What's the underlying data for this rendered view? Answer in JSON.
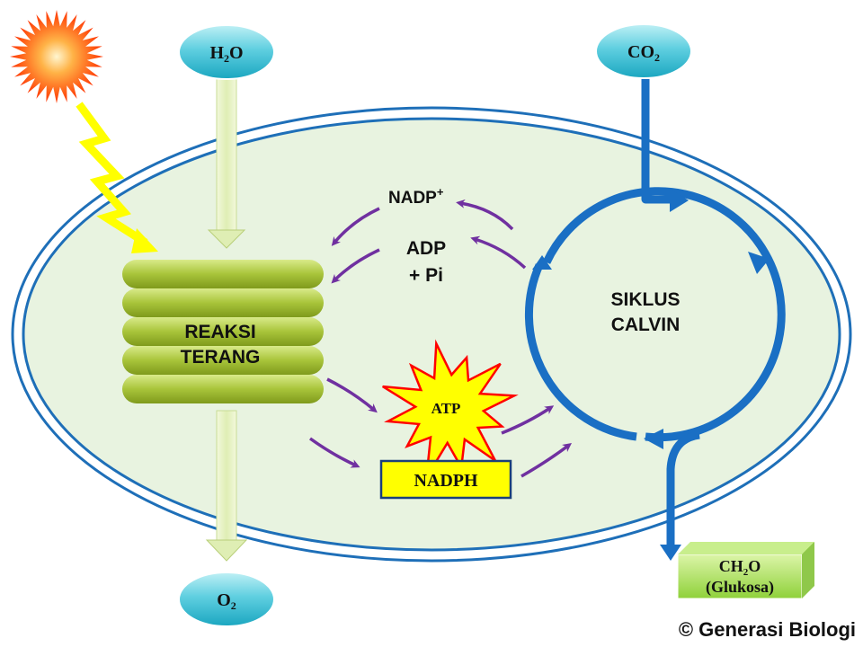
{
  "inputs": {
    "water": {
      "base": "H",
      "sub": "2",
      "tail": "O"
    },
    "carbon_dioxide": {
      "base": "CO",
      "sub": "2"
    }
  },
  "outputs": {
    "oxygen": {
      "base": "O",
      "sub": "2"
    },
    "glucose": {
      "base": "CH",
      "sub": "2",
      "tail": "O",
      "note": "(Glukosa)"
    }
  },
  "light_reaction": {
    "line1": "REAKSI",
    "line2": "TERANG"
  },
  "calvin_cycle": {
    "line1": "SIKLUS",
    "line2": "CALVIN"
  },
  "recycled": {
    "nadp": {
      "base": "NADP",
      "sup": "+"
    },
    "adp_line1": "ADP",
    "adp_line2": "+ Pi"
  },
  "products": {
    "atp": "ATP",
    "nadph": "NADPH"
  },
  "credit": "© Generasi Biologi",
  "colors": {
    "stroma": "#e8f3e0",
    "membrane": "#1e6fb8",
    "cycle": "#1a6fc4",
    "thylakoid": "#a8c43a",
    "flow_arrow": "#7030a0",
    "lightning": "#ffff00",
    "nadph_box": "#ffff00",
    "atp_burst": "#ffff00",
    "atp_outline": "#ff0000",
    "input_oval": "#5fcfe0",
    "glucose_box": "#b6e36a"
  }
}
